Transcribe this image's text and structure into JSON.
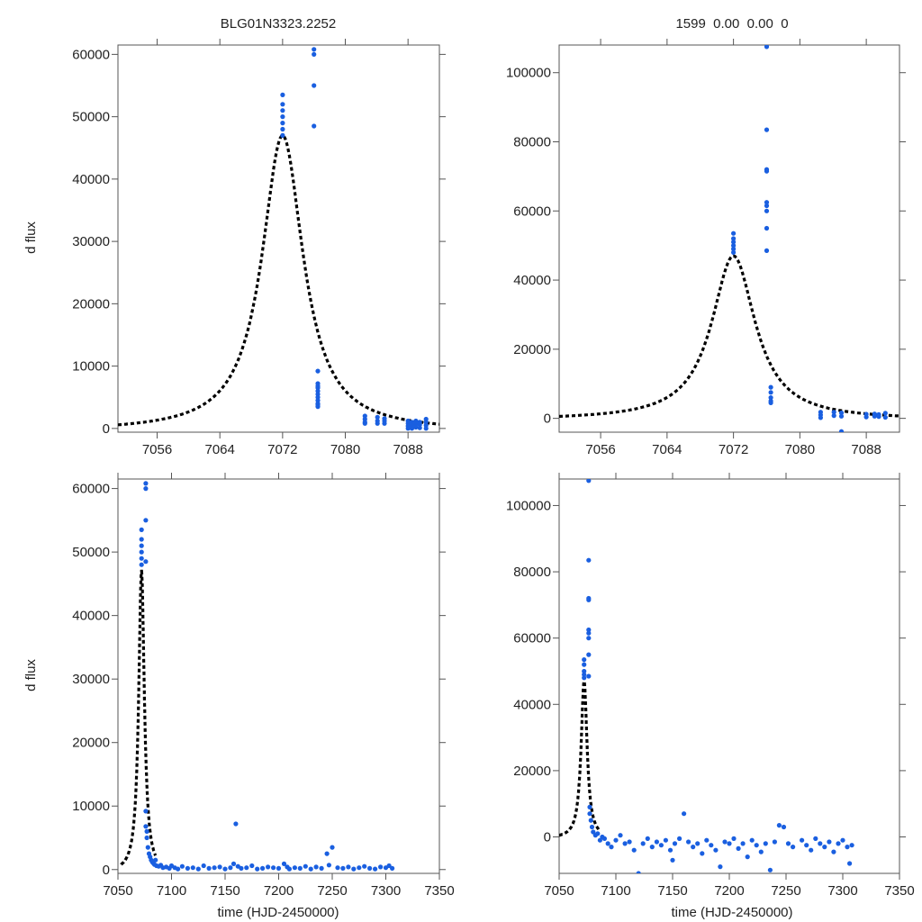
{
  "figure": {
    "title_left": "BLG01N3323.2252",
    "title_right": "1599  0.00  0.00  0",
    "ylabel": "d flux",
    "xlabel": "time (HJD-2450000)"
  },
  "colors": {
    "points": "#1a5fe0",
    "model": "#000000",
    "axes": "#555555",
    "text": "#222222"
  },
  "model": {
    "t0": 7072.0,
    "peak": 47000,
    "tE": 3.2,
    "base": -500
  },
  "chart_data": [
    {
      "id": "top-left",
      "type": "scatter",
      "title": "BLG01N3323.2252",
      "xlabel": "",
      "ylabel": "d flux",
      "xlim": [
        7051,
        7092
      ],
      "ylim": [
        -600,
        61500
      ],
      "xticks": [
        7056,
        7064,
        7072,
        7080,
        7088
      ],
      "yticks": [
        0,
        10000,
        20000,
        30000,
        40000,
        50000,
        60000
      ],
      "series": [
        {
          "name": "observations",
          "type": "scatter",
          "x": [
            7072,
            7072,
            7072,
            7072,
            7072,
            7072,
            7072,
            7076,
            7076,
            7076,
            7076,
            7076.5,
            7076.5,
            7076.5,
            7076.5,
            7076.5,
            7076.5,
            7076.5,
            7076.5,
            7076.5,
            7076.5,
            7076.5,
            7082.5,
            7082.5,
            7082.5,
            7082.5,
            7084.1,
            7084.1,
            7084.1,
            7085,
            7085,
            7085,
            7088,
            7088,
            7088,
            7088,
            7088.5,
            7088.5,
            7088.5,
            7089,
            7089,
            7089,
            7089.5,
            7089.5,
            7089.5,
            7090.3,
            7090.3,
            7090.3,
            7090.3
          ],
          "y": [
            53500,
            52000,
            51000,
            50000,
            49000,
            48000,
            47000,
            60800,
            60000,
            55000,
            48500,
            9200,
            7200,
            6800,
            6500,
            6000,
            5500,
            5000,
            4500,
            4000,
            3800,
            3500,
            2000,
            1500,
            1000,
            800,
            1800,
            1200,
            800,
            1600,
            1200,
            800,
            1200,
            800,
            400,
            0,
            1000,
            500,
            0,
            1200,
            700,
            200,
            1000,
            600,
            100,
            1500,
            1000,
            500,
            0
          ]
        },
        {
          "name": "PSPL model",
          "type": "line",
          "from": 7051,
          "to": 7092
        }
      ]
    },
    {
      "id": "top-right",
      "type": "scatter",
      "title": "1599  0.00  0.00  0",
      "xlabel": "",
      "ylabel": "",
      "xlim": [
        7051,
        7092
      ],
      "ylim": [
        -4000,
        108000
      ],
      "xticks": [
        7056,
        7064,
        7072,
        7080,
        7088
      ],
      "yticks": [
        0,
        20000,
        40000,
        60000,
        80000,
        100000
      ],
      "series": [
        {
          "name": "observations",
          "type": "scatter",
          "x": [
            7072,
            7072,
            7072,
            7072,
            7072,
            7072,
            7076,
            7076,
            7076,
            7076,
            7076,
            7076,
            7076,
            7076,
            7076,
            7076.5,
            7076.5,
            7076.5,
            7076.5,
            7076.5,
            7082.5,
            7082.5,
            7082.5,
            7084.1,
            7084.1,
            7085,
            7085,
            7085,
            7088,
            7088,
            7089,
            7089,
            7089.5,
            7089.5,
            7090.3,
            7090.3
          ],
          "y": [
            53500,
            52000,
            51000,
            50000,
            49000,
            48000,
            107500,
            83500,
            72000,
            71500,
            62500,
            61500,
            60000,
            55000,
            48500,
            9000,
            7500,
            6000,
            5000,
            4500,
            1800,
            1000,
            200,
            1800,
            800,
            -3800,
            1600,
            600,
            1200,
            400,
            1300,
            600,
            1100,
            500,
            1500,
            300
          ]
        },
        {
          "name": "PSPL model",
          "type": "line",
          "from": 7051,
          "to": 7092
        }
      ]
    },
    {
      "id": "bottom-left",
      "type": "scatter",
      "title": "",
      "xlabel": "time (HJD-2450000)",
      "ylabel": "d flux",
      "xlim": [
        7050,
        7350
      ],
      "ylim": [
        -600,
        61500
      ],
      "xticks": [
        7050,
        7100,
        7150,
        7200,
        7250,
        7300,
        7350
      ],
      "yticks": [
        0,
        10000,
        20000,
        30000,
        40000,
        50000,
        60000
      ],
      "series": [
        {
          "name": "observations",
          "type": "scatter",
          "x": [
            7072,
            7072,
            7072,
            7072,
            7072,
            7072,
            7076,
            7076,
            7076,
            7076,
            7076,
            7076,
            7077,
            7077,
            7078,
            7079,
            7080,
            7081,
            7082,
            7083,
            7084,
            7085,
            7086,
            7088,
            7090,
            7092,
            7095,
            7098,
            7100,
            7103,
            7106,
            7110,
            7115,
            7120,
            7125,
            7130,
            7135,
            7140,
            7145,
            7150,
            7155,
            7158,
            7160,
            7162,
            7165,
            7170,
            7175,
            7180,
            7185,
            7190,
            7195,
            7200,
            7205,
            7208,
            7210,
            7215,
            7220,
            7225,
            7230,
            7235,
            7240,
            7245,
            7247,
            7250,
            7255,
            7260,
            7265,
            7270,
            7275,
            7280,
            7285,
            7290,
            7295,
            7300,
            7303,
            7306
          ],
          "y": [
            53500,
            52000,
            51000,
            50000,
            49000,
            48000,
            60800,
            60000,
            55000,
            48500,
            9200,
            6800,
            6000,
            5000,
            3500,
            2500,
            2000,
            1500,
            1200,
            1000,
            800,
            1500,
            600,
            500,
            700,
            300,
            400,
            200,
            600,
            300,
            100,
            500,
            200,
            300,
            100,
            600,
            200,
            300,
            400,
            100,
            300,
            900,
            7200,
            500,
            200,
            300,
            600,
            100,
            200,
            400,
            300,
            200,
            900,
            400,
            100,
            300,
            200,
            500,
            100,
            400,
            200,
            2500,
            700,
            3500,
            300,
            200,
            400,
            100,
            300,
            500,
            200,
            100,
            400,
            300,
            600,
            200
          ]
        },
        {
          "name": "PSPL model",
          "type": "line",
          "from": 7053,
          "to": 7085
        }
      ]
    },
    {
      "id": "bottom-right",
      "type": "scatter",
      "title": "",
      "xlabel": "time (HJD-2450000)",
      "ylabel": "",
      "xlim": [
        7050,
        7350
      ],
      "ylim": [
        -11000,
        108000
      ],
      "xticks": [
        7050,
        7100,
        7150,
        7200,
        7250,
        7300,
        7350
      ],
      "yticks": [
        0,
        20000,
        40000,
        60000,
        80000,
        100000
      ],
      "series": [
        {
          "name": "observations",
          "type": "scatter",
          "x": [
            7072,
            7072,
            7072,
            7072,
            7072,
            7076,
            7076,
            7076,
            7076,
            7076,
            7076,
            7076,
            7076,
            7076,
            7077,
            7077,
            7078,
            7079,
            7080,
            7082,
            7084,
            7086,
            7088,
            7090,
            7093,
            7096,
            7100,
            7104,
            7108,
            7112,
            7116,
            7120,
            7124,
            7128,
            7132,
            7136,
            7140,
            7144,
            7148,
            7150,
            7152,
            7156,
            7160,
            7164,
            7168,
            7172,
            7176,
            7180,
            7184,
            7188,
            7192,
            7196,
            7200,
            7204,
            7208,
            7212,
            7216,
            7220,
            7224,
            7228,
            7232,
            7236,
            7240,
            7244,
            7248,
            7252,
            7256,
            7264,
            7268,
            7272,
            7276,
            7280,
            7284,
            7288,
            7292,
            7296,
            7300,
            7304,
            7306,
            7308
          ],
          "y": [
            53500,
            52000,
            50000,
            49000,
            48000,
            107500,
            83500,
            72000,
            71500,
            62500,
            61500,
            60000,
            55000,
            48500,
            9000,
            7000,
            5000,
            3000,
            1500,
            500,
            1000,
            -1000,
            0,
            -500,
            -2000,
            -3000,
            -1000,
            500,
            -2000,
            -1500,
            -4000,
            -11000,
            -2000,
            -500,
            -3000,
            -1500,
            -2500,
            -1000,
            -4000,
            -7000,
            -2000,
            -500,
            7000,
            -1500,
            -3000,
            -2000,
            -5000,
            -1000,
            -2500,
            -4000,
            -9000,
            -1500,
            -2000,
            -500,
            -3500,
            -2000,
            -6000,
            -1000,
            -2500,
            -4500,
            -2000,
            -10000,
            -1500,
            3500,
            3000,
            -2000,
            -3000,
            -1000,
            -2500,
            -4000,
            -500,
            -2000,
            -3000,
            -1500,
            -4500,
            -2000,
            -1000,
            -3000,
            -8000,
            -2500
          ]
        },
        {
          "name": "PSPL model",
          "type": "line",
          "from": 7050,
          "to": 7085
        }
      ]
    }
  ]
}
